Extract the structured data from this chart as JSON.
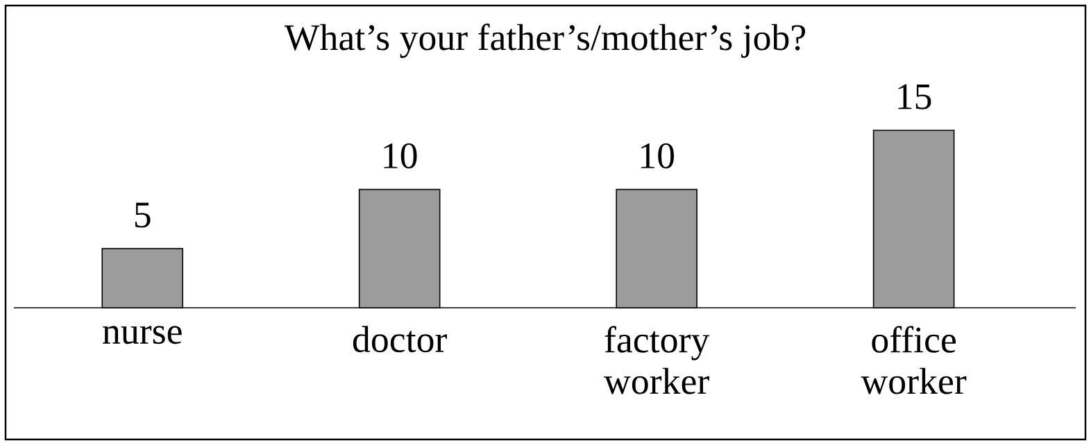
{
  "chart_data": {
    "type": "bar",
    "title": "What’s your father’s/mother’s job?",
    "categories": [
      "nurse",
      "doctor",
      "factory worker",
      "office worker"
    ],
    "values": [
      5,
      10,
      10,
      15
    ],
    "color": "#9c9c9c",
    "data_labels": true
  }
}
